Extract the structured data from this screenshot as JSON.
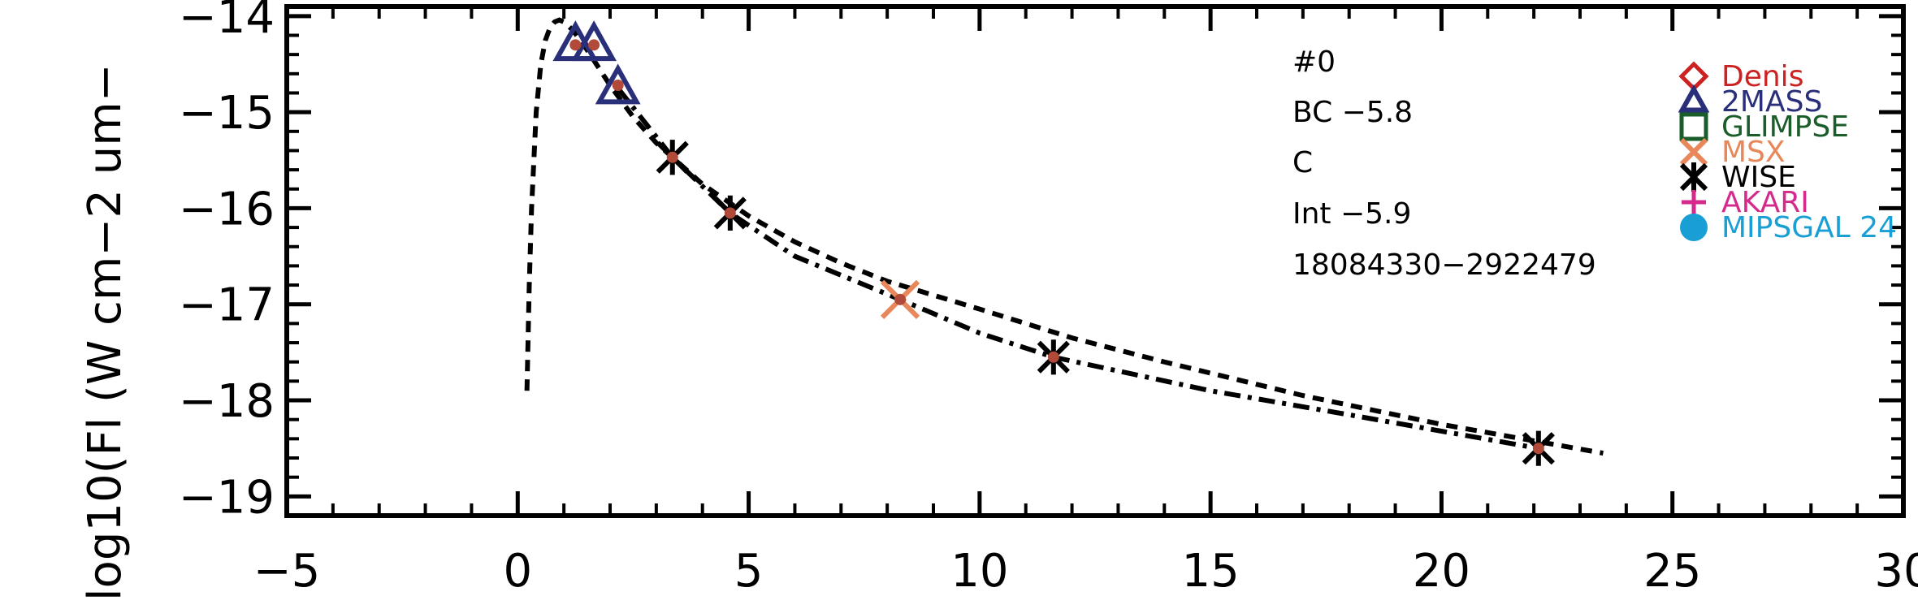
{
  "chart_data": {
    "type": "scatter",
    "xlabel": "",
    "ylabel": "log10(Fl (W cm−2 um−",
    "xlim": [
      -5,
      30
    ],
    "ylim": [
      -19.2,
      -13.9
    ],
    "x_ticks": [
      -5,
      0,
      5,
      10,
      15,
      20,
      25,
      30
    ],
    "x_tick_labels": [
      "−5",
      "0",
      "5",
      "10",
      "15",
      "20",
      "25",
      "30"
    ],
    "y_ticks": [
      -19,
      -18,
      -17,
      -16,
      -15,
      -14
    ],
    "y_tick_labels": [
      "−19",
      "−18",
      "−17",
      "−16",
      "−15",
      "−14"
    ],
    "annotations": [
      "#0",
      "BC  −5.8",
      "C",
      "Int  −5.9",
      "18084330−2922479"
    ],
    "legend": [
      {
        "label": "Denis",
        "color": "#cc2222",
        "marker": "diamond"
      },
      {
        "label": "2MASS",
        "color": "#2a2f7a",
        "marker": "triangle"
      },
      {
        "label": "GLIMPSE",
        "color": "#1a5c2a",
        "marker": "square"
      },
      {
        "label": "MSX",
        "color": "#e8875a",
        "marker": "x"
      },
      {
        "label": "WISE",
        "color": "#000000",
        "marker": "asterisk"
      },
      {
        "label": "AKARI",
        "color": "#d42a8c",
        "marker": "plus"
      },
      {
        "label": "MIPSGAL 24",
        "color": "#1a9fd4",
        "marker": "circle"
      }
    ],
    "series": [
      {
        "name": "2MASS",
        "marker": "triangle",
        "color": "#2a2f7a",
        "x": [
          1.25,
          1.65,
          2.17
        ],
        "y": [
          -14.3,
          -14.3,
          -14.75
        ]
      },
      {
        "name": "MSX",
        "marker": "x",
        "color": "#e8875a",
        "x": [
          8.28
        ],
        "y": [
          -16.95
        ]
      },
      {
        "name": "WISE",
        "marker": "asterisk",
        "color": "#000000",
        "x": [
          3.35,
          4.6,
          11.6,
          22.1
        ],
        "y": [
          -15.47,
          -16.05,
          -17.55,
          -18.5
        ]
      },
      {
        "name": "",
        "marker": "dot",
        "color": "#b24a3a",
        "x": [
          1.25,
          1.65,
          2.17,
          3.35,
          4.6,
          8.28,
          11.6,
          22.1
        ],
        "y": [
          -14.3,
          -14.3,
          -14.72,
          -15.47,
          -16.05,
          -16.95,
          -17.55,
          -18.5
        ]
      }
    ],
    "curves": [
      {
        "style": "dashed",
        "x": [
          0.2,
          0.25,
          0.3,
          0.4,
          0.5,
          0.6,
          0.7,
          0.8,
          0.9,
          1.0,
          1.2,
          1.5,
          2.0,
          2.5,
          3.0,
          4.0,
          5.0,
          6.0,
          7.0,
          8.0,
          10.0,
          12.0,
          14.0,
          17.0,
          20.0,
          23.5
        ],
        "y": [
          -17.9,
          -16.8,
          -16.0,
          -15.0,
          -14.5,
          -14.25,
          -14.12,
          -14.06,
          -14.04,
          -14.06,
          -14.15,
          -14.35,
          -14.72,
          -15.05,
          -15.32,
          -15.75,
          -16.08,
          -16.35,
          -16.57,
          -16.76,
          -17.05,
          -17.35,
          -17.6,
          -17.95,
          -18.25,
          -18.55
        ]
      },
      {
        "style": "dashdot",
        "x": [
          2.17,
          3.35,
          4.6,
          6.0,
          8.28,
          10.0,
          11.6,
          15.0,
          18.0,
          22.1
        ],
        "y": [
          -14.75,
          -15.47,
          -16.05,
          -16.5,
          -16.95,
          -17.3,
          -17.55,
          -17.9,
          -18.15,
          -18.5
        ]
      }
    ]
  }
}
